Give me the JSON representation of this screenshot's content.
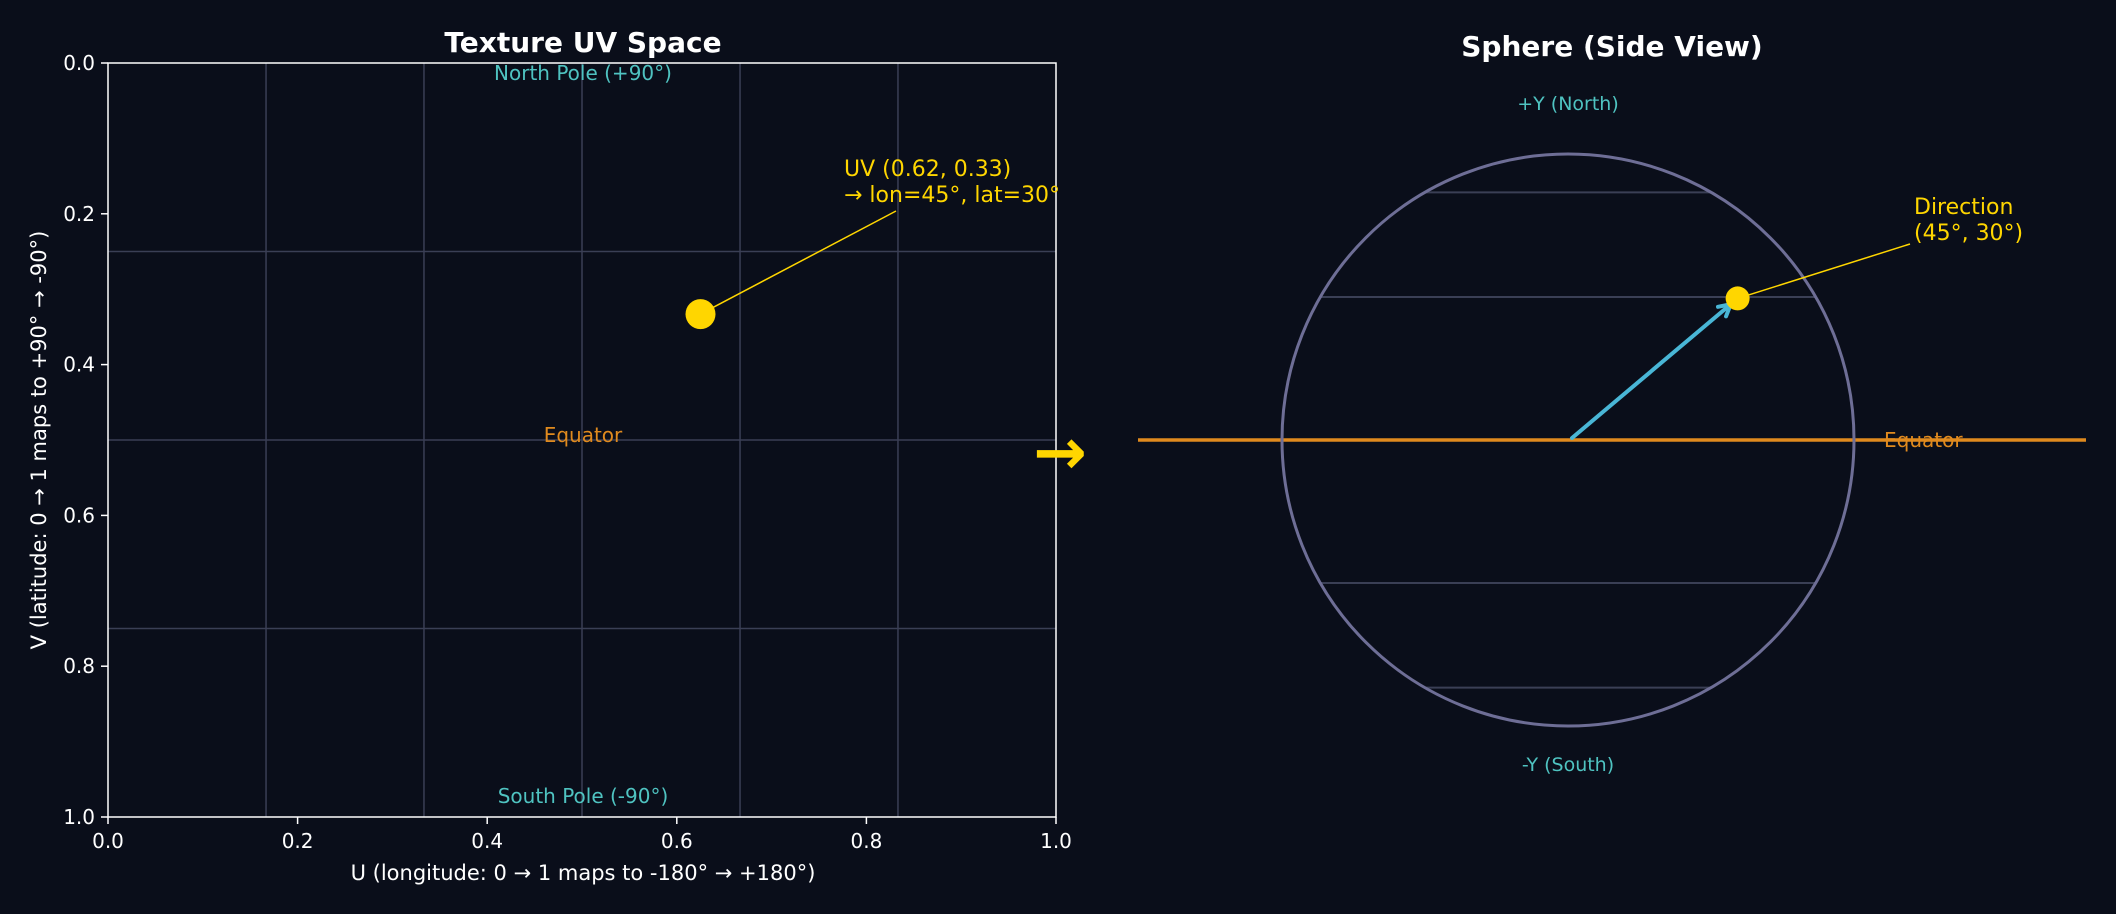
{
  "chart_data": [
    {
      "type": "scatter",
      "title": "Texture UV Space",
      "xlabel": "U (longitude: 0 → 1 maps to -180° → +180°)",
      "ylabel": "V (latitude: 0 → 1 maps to +90° → -90°)",
      "xlim": [
        0,
        1
      ],
      "ylim": [
        1,
        0
      ],
      "y_inverted": true,
      "xticks": [
        "0.0",
        "0.2",
        "0.4",
        "0.6",
        "0.8",
        "1.0"
      ],
      "yticks": [
        "0.0",
        "0.2",
        "0.4",
        "0.6",
        "0.8",
        "1.0"
      ],
      "grid_u": [
        0.1667,
        0.3333,
        0.5,
        0.6667,
        0.8333
      ],
      "grid_v": [
        0.25,
        0.5,
        0.75
      ],
      "points": [
        {
          "u": 0.625,
          "v": 0.333
        }
      ],
      "annotations": {
        "north": "North Pole (+90°)",
        "south": "South Pole (-90°)",
        "equator": "Equator",
        "uv_line1": "UV (0.62, 0.33)",
        "uv_line2": "→ lon=45°, lat=30°"
      }
    },
    {
      "type": "diagram",
      "title": "Sphere (Side View)",
      "latitude_lines_deg": [
        60,
        30,
        -30,
        -60
      ],
      "direction": {
        "lon_deg": 45,
        "lat_deg": 30
      },
      "labels": {
        "north": "+Y (North)",
        "south": "-Y (South)",
        "equator": "Equator",
        "dir_line1": "Direction",
        "dir_line2": "(45°, 30°)"
      }
    }
  ],
  "arrow_glyph": "→",
  "colors": {
    "background": "#0a0e1a",
    "grid": "#3a3f55",
    "sphere_outline": "#6e6e96",
    "teal": "#4fc3c1",
    "equator": "#e08a1e",
    "point": "#ffd600",
    "direction_arrow": "#49b6d6",
    "text": "#ffffff"
  }
}
